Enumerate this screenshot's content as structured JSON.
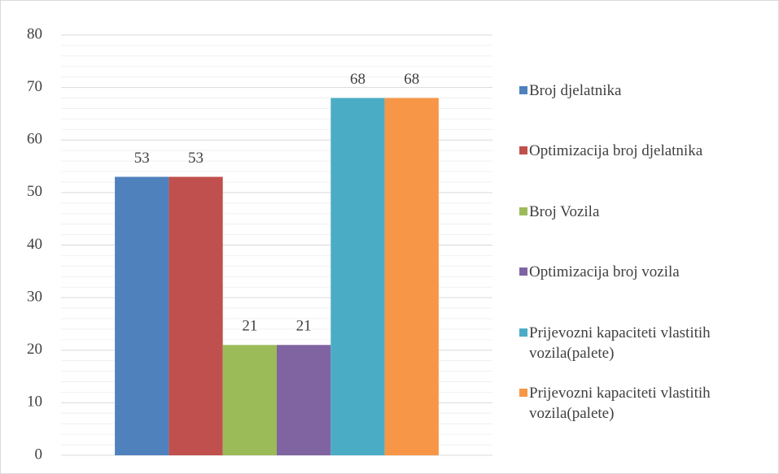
{
  "chart_data": {
    "type": "bar",
    "categories": [
      null
    ],
    "series": [
      {
        "name": "Broj djelatnika",
        "color": "#4f81bd",
        "values": [
          53
        ]
      },
      {
        "name": "Optimizacija broj djelatnika",
        "color": "#c0504d",
        "values": [
          53
        ]
      },
      {
        "name": "Broj Vozila",
        "color": "#9bbb59",
        "values": [
          21
        ]
      },
      {
        "name": "Optimizacija broj vozila",
        "color": "#8064a2",
        "values": [
          21
        ]
      },
      {
        "name": "Prijevozni kapaciteti vlastitih vozila(palete)",
        "color": "#4bacc6",
        "values": [
          68
        ]
      },
      {
        "name": "Prijevozni kapaciteti vlastitih vozila(palete)",
        "color": "#f79646",
        "values": [
          68
        ]
      }
    ],
    "ylim": [
      0,
      80
    ],
    "yticks": [
      0,
      10,
      20,
      30,
      40,
      50,
      60,
      70,
      80
    ],
    "yticks_minor": [
      2,
      4,
      6,
      8,
      12,
      14,
      16,
      18,
      22,
      24,
      26,
      28,
      32,
      34,
      36,
      38,
      42,
      44,
      46,
      48,
      52,
      54,
      56,
      58,
      62,
      64,
      66,
      68,
      72,
      74,
      76,
      78
    ],
    "grid": true,
    "legend": "right"
  }
}
